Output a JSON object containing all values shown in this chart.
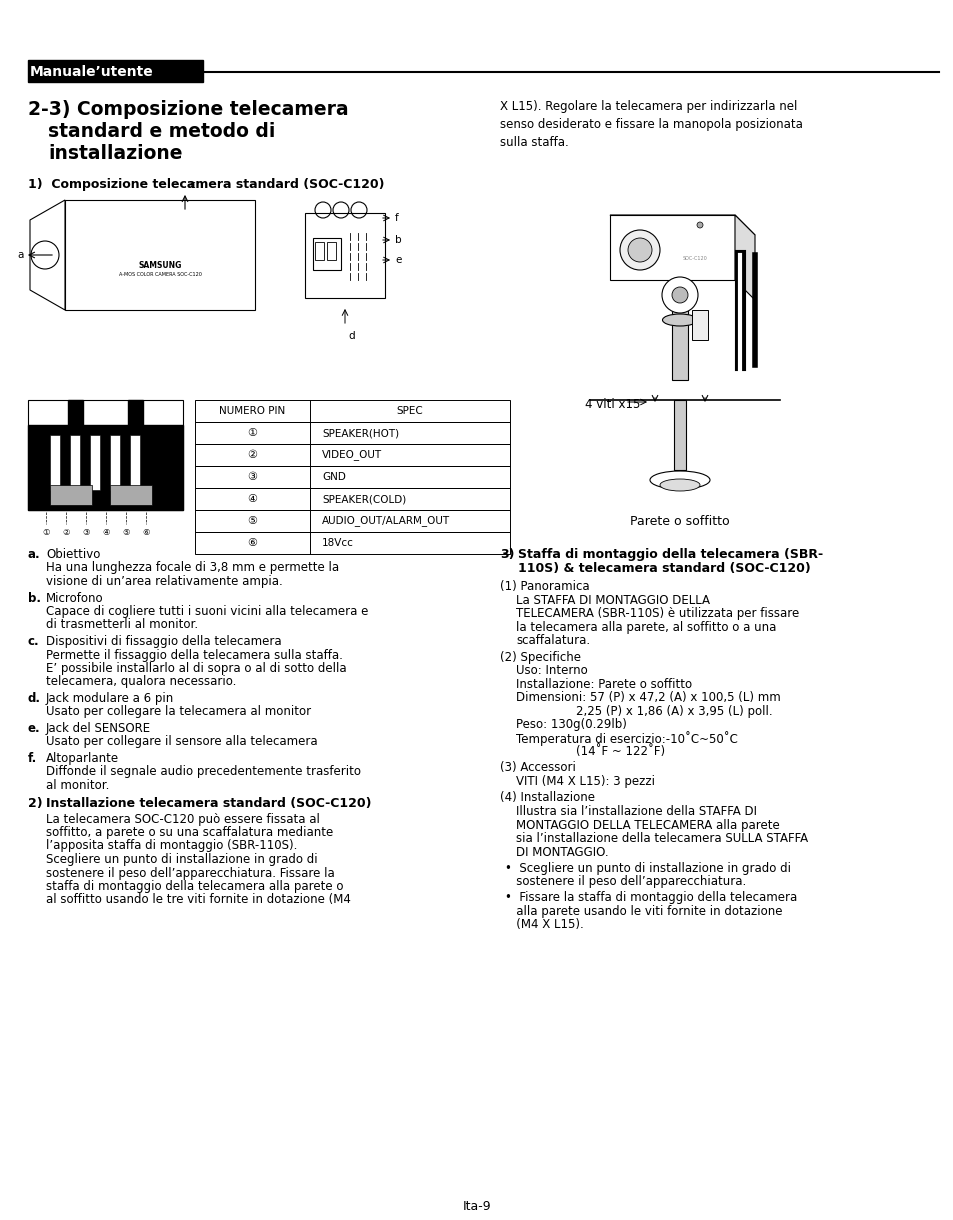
{
  "bg_color": "#ffffff",
  "header_bg": "#000000",
  "header_text": "Manuale’utente",
  "header_text_color": "#ffffff",
  "table_headers": [
    "NUMERO PIN",
    "SPEC"
  ],
  "table_rows": [
    [
      "①",
      "SPEAKER(HOT)"
    ],
    [
      "②",
      "VIDEO_OUT"
    ],
    [
      "③",
      "GND"
    ],
    [
      "④",
      "SPEAKER(COLD)"
    ],
    [
      "⑤",
      "AUDIO_OUT/ALARM_OUT"
    ],
    [
      "⑥",
      "18Vcc"
    ]
  ],
  "right_intro": "X L15). Regolare la telecamera per indirizzarla nel\nsenso desiderato e fissare la manopola posizionata\nsulla staffa.",
  "list_items": [
    [
      "a.",
      "Obiettivo",
      "Ha una lunghezza focale di 3,8 mm e permette la\nvisione di un’area relativamente ampia."
    ],
    [
      "b.",
      "Microfono",
      "Capace di cogliere tutti i suoni vicini alla telecamera e\ndi trasmetterli al monitor."
    ],
    [
      "c.",
      "Dispositivi di fissaggio della telecamera",
      "Permette il fissaggio della telecamera sulla staffa.\nE’ possibile installarlo al di sopra o al di sotto della\ntelecamera, qualora necessario."
    ],
    [
      "d.",
      "Jack modulare a 6 pin",
      "Usato per collegare la telecamera al monitor"
    ],
    [
      "e.",
      "Jack del SENSORE",
      "Usato per collegare il sensore alla telecamera"
    ],
    [
      "f.",
      "Altoparlante",
      "Diffonde il segnale audio precedentemente trasferito\nal monitor."
    ]
  ],
  "section2_heading": "Installazione telecamera standard (SOC-C120)",
  "section2_text": "La telecamera SOC-C120 può essere fissata al\nsoffitto, a parete o su una scaffalatura mediante\nl’apposita staffa di montaggio (SBR-110S).\nScegliere un punto di installazione in grado di\nsostenere il peso dell’apparecchiatura. Fissare la\nstaffa di montaggio della telecamera alla parete o\nal soffitto usando le tre viti fornite in dotazione (M4",
  "section3_line1": "Staffa di montaggio della telecamera (SBR-",
  "section3_line2": "110S) & telecamera standard (SOC-C120)",
  "para1_title": "(1) Panoramica",
  "para1_body": "La STAFFA DI MONTAGGIO DELLA\nTELECAMERA (SBR-110S) è utilizzata per fissare\nla telecamera alla parete, al soffitto o a una\nscaffalatura.",
  "para2_title": "(2) Specifiche",
  "para2_body": "Uso: Interno\nInstallazione: Parete o soffitto\nDimensioni: 57 (P) x 47,2 (A) x 100,5 (L) mm\n                2,25 (P) x 1,86 (A) x 3,95 (L) poll.\nPeso: 130g(0.29lb)\nTemperatura di esercizio:-10˚C~50˚C\n                (14˚F ~ 122˚F)",
  "para3_title": "(3) Accessori",
  "para3_body": "VITI (M4 X L15): 3 pezzi",
  "para4_title": "(4) Installazione",
  "para4_body": "Illustra sia l’installazione della STAFFA DI\nMONTAGGIO DELLA TELECAMERA alla parete\nsia l’installazione della telecamera SULLA STAFFA\nDI MONTAGGIO.",
  "bullet1": "•  Scegliere un punto di installazione in grado di\n   sostenere il peso dell’apparecchiatura.",
  "bullet2": "•  Fissare la staffa di montaggio della telecamera\n   alla parete usando le viti fornite in dotazione\n   (M4 X L15).",
  "viti_label": "4 viti x15",
  "parete_label": "Parete o soffitto",
  "page_number": "Ita-9"
}
